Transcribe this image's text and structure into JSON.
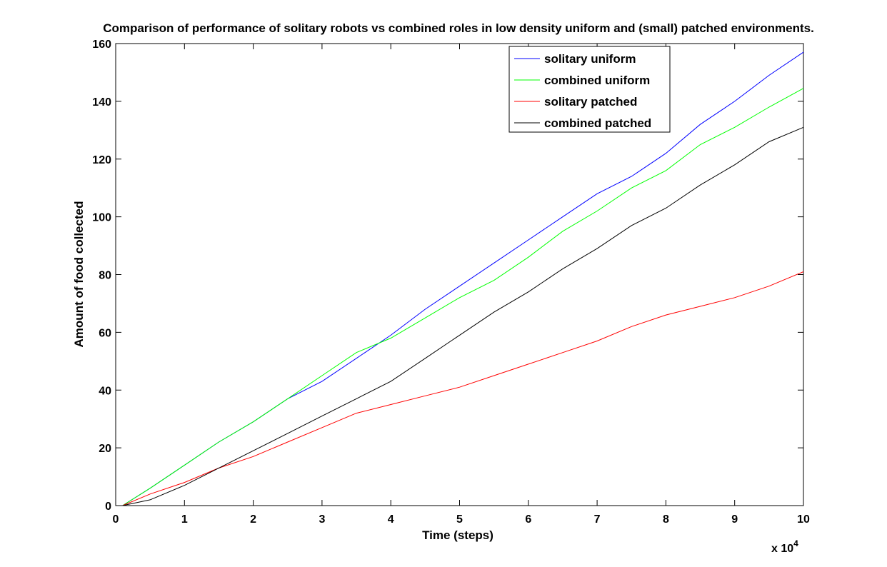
{
  "chart_data": {
    "type": "line",
    "title": "Comparison of performance of solitary robots vs combined roles in low density uniform and (small) patched environments.",
    "xlabel": "Time (steps)",
    "ylabel": "Amount of food collected",
    "x_multiplier_label": "x 10",
    "x_multiplier_exponent": "4",
    "xlim": [
      0,
      10
    ],
    "ylim": [
      0,
      160
    ],
    "x_ticks": [
      0,
      1,
      2,
      3,
      4,
      5,
      6,
      7,
      8,
      9,
      10
    ],
    "y_ticks": [
      0,
      20,
      40,
      60,
      80,
      100,
      120,
      140,
      160
    ],
    "grid": false,
    "legend_position": "top-right",
    "x": [
      0.1,
      0.5,
      1,
      1.5,
      2,
      2.5,
      3,
      3.5,
      4,
      4.5,
      5,
      5.5,
      6,
      6.5,
      7,
      7.5,
      8,
      8.5,
      9,
      9.5,
      10
    ],
    "series": [
      {
        "name": "solitary uniform",
        "color": "#0000ff",
        "values": [
          0,
          6,
          14,
          22,
          29,
          37,
          43,
          51,
          59,
          68,
          76,
          84,
          92,
          100,
          108,
          114,
          122,
          132,
          140,
          149,
          157
        ]
      },
      {
        "name": "combined uniform",
        "color": "#00ff00",
        "values": [
          0,
          6,
          14,
          22,
          29,
          37,
          45,
          53,
          58,
          65,
          72,
          78,
          86,
          95,
          102,
          110,
          116,
          125,
          131,
          138,
          144.5
        ]
      },
      {
        "name": "solitary patched",
        "color": "#ff0000",
        "values": [
          0,
          4,
          8,
          13,
          17,
          22,
          27,
          32,
          35,
          38,
          41,
          45,
          49,
          53,
          57,
          62,
          66,
          69,
          72,
          76,
          81
        ]
      },
      {
        "name": "combined patched",
        "color": "#000000",
        "values": [
          0,
          2,
          7,
          13,
          19,
          25,
          31,
          37,
          43,
          51,
          59,
          67,
          74,
          82,
          89,
          97,
          103,
          111,
          118,
          126,
          131
        ]
      }
    ]
  }
}
